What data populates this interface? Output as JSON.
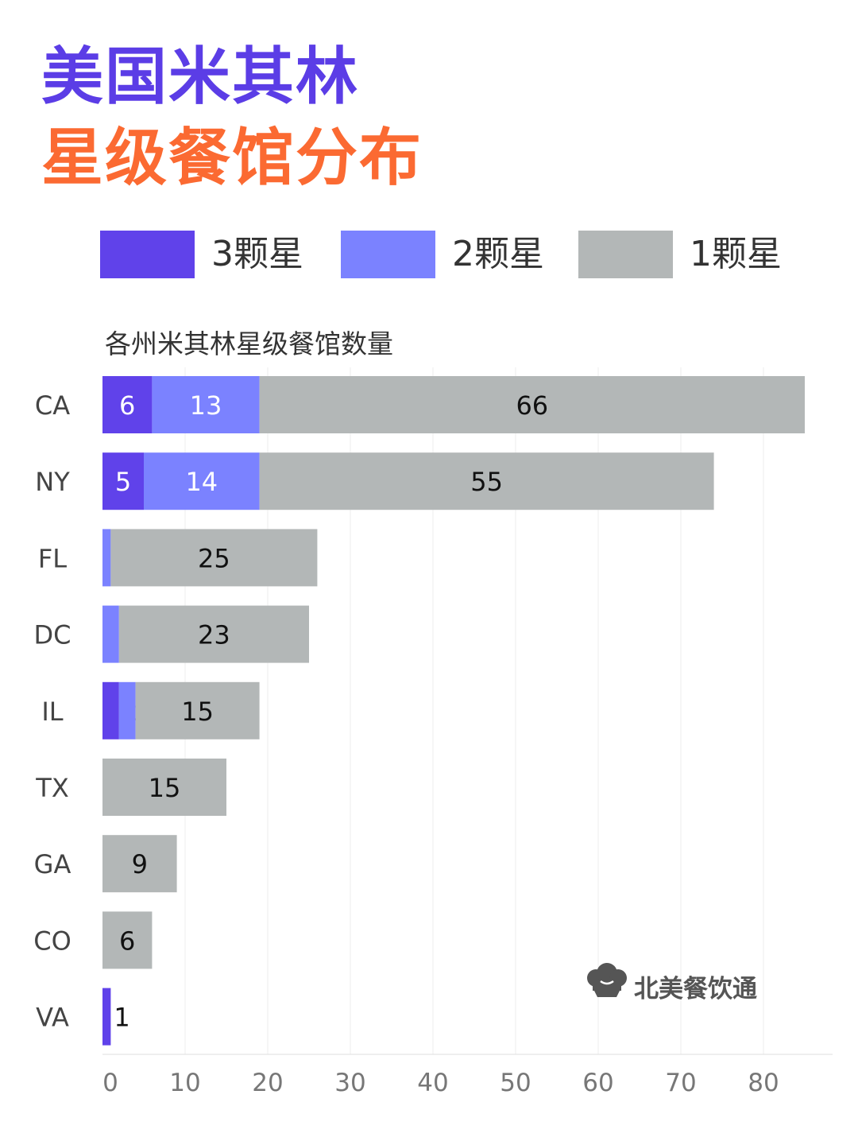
{
  "title": {
    "line1": "美国米其林",
    "line2": "星级餐馆分布"
  },
  "legend": [
    {
      "label": "3颗星",
      "color": "#6042ea"
    },
    {
      "label": "2颗星",
      "color": "#7b82ff"
    },
    {
      "label": "1颗星",
      "color": "#b3b7b7"
    }
  ],
  "brand": {
    "name": "北美餐饮通",
    "icon": "chef-hat-icon"
  },
  "chart_data": {
    "type": "bar",
    "orientation": "horizontal",
    "stacked": true,
    "title": "各州米其林星级餐馆数量",
    "categories": [
      "CA",
      "NY",
      "FL",
      "DC",
      "IL",
      "TX",
      "GA",
      "CO",
      "VA"
    ],
    "series": [
      {
        "name": "3颗星",
        "color": "#6042ea",
        "values": [
          6,
          5,
          0,
          0,
          2,
          0,
          0,
          0,
          1
        ]
      },
      {
        "name": "2颗星",
        "color": "#7b82ff",
        "values": [
          13,
          14,
          1,
          2,
          2,
          0,
          0,
          0,
          0
        ]
      },
      {
        "name": "1颗星",
        "color": "#b3b7b7",
        "values": [
          66,
          55,
          25,
          23,
          15,
          15,
          9,
          6,
          0
        ]
      }
    ],
    "xlim": [
      0,
      88
    ],
    "xticks": [
      0,
      10,
      20,
      30,
      40,
      50,
      60,
      70,
      80
    ],
    "grid": "vertical",
    "legend_position": "top"
  }
}
